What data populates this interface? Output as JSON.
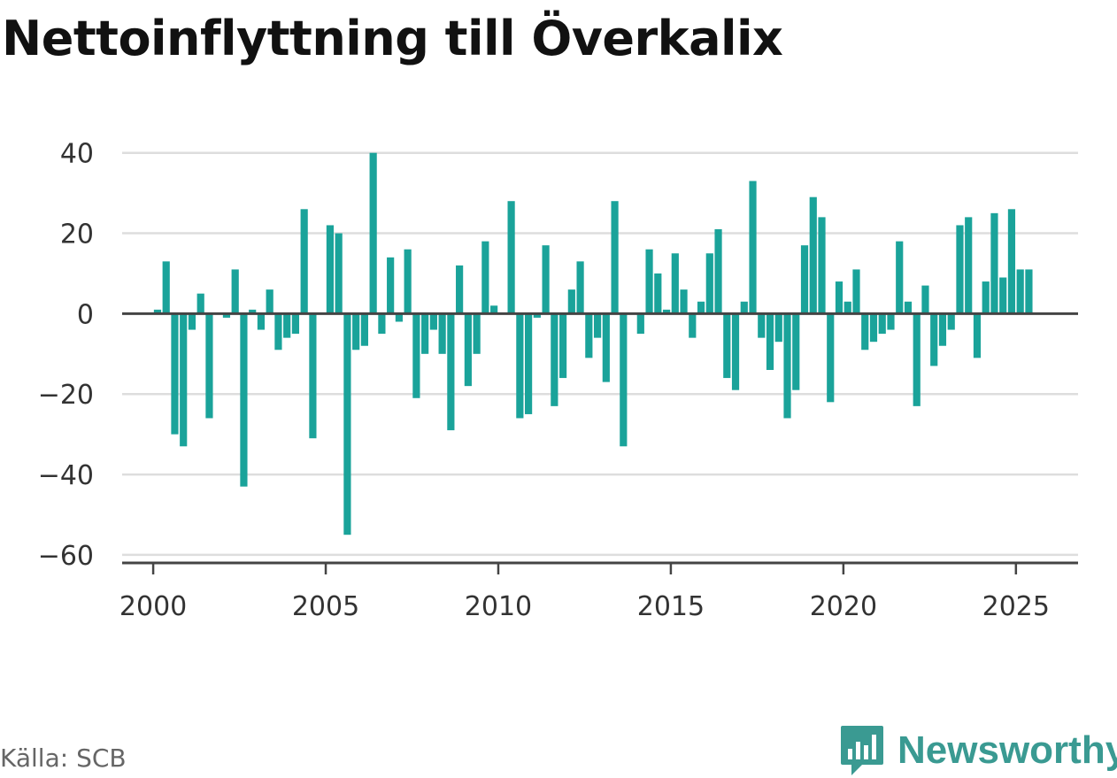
{
  "title": "Nettoinflyttning till Överkalix",
  "source": "Källa: SCB",
  "brand": {
    "name": "Newsworthy",
    "icon": "bar-chart-bubble-icon"
  },
  "colors": {
    "bar": "#1aa39a",
    "zero_line": "#444444",
    "grid": "#dddddd",
    "brand": "#3a9a92"
  },
  "chart_data": {
    "type": "bar",
    "title": "Nettoinflyttning till Överkalix",
    "xlabel": "",
    "ylabel": "",
    "frequency": "quarterly",
    "xlim": [
      1999.1,
      2026.8
    ],
    "ylim": [
      -62,
      45
    ],
    "grid": true,
    "x_ticks": [
      2000,
      2005,
      2010,
      2015,
      2020,
      2025
    ],
    "y_ticks": [
      40,
      20,
      0,
      -20,
      -40,
      -60
    ],
    "y_tick_labels": [
      "40",
      "20",
      "0",
      "−20",
      "−40",
      "−60"
    ],
    "x": [
      "2000 Q1",
      "2000 Q2",
      "2000 Q3",
      "2000 Q4",
      "2001 Q1",
      "2001 Q2",
      "2001 Q3",
      "2001 Q4",
      "2002 Q1",
      "2002 Q2",
      "2002 Q3",
      "2002 Q4",
      "2003 Q1",
      "2003 Q2",
      "2003 Q3",
      "2003 Q4",
      "2004 Q1",
      "2004 Q2",
      "2004 Q3",
      "2004 Q4",
      "2005 Q1",
      "2005 Q2",
      "2005 Q3",
      "2005 Q4",
      "2006 Q1",
      "2006 Q2",
      "2006 Q3",
      "2006 Q4",
      "2007 Q1",
      "2007 Q2",
      "2007 Q3",
      "2007 Q4",
      "2008 Q1",
      "2008 Q2",
      "2008 Q3",
      "2008 Q4",
      "2009 Q1",
      "2009 Q2",
      "2009 Q3",
      "2009 Q4",
      "2010 Q1",
      "2010 Q2",
      "2010 Q3",
      "2010 Q4",
      "2011 Q1",
      "2011 Q2",
      "2011 Q3",
      "2011 Q4",
      "2012 Q1",
      "2012 Q2",
      "2012 Q3",
      "2012 Q4",
      "2013 Q1",
      "2013 Q2",
      "2013 Q3",
      "2013 Q4",
      "2014 Q1",
      "2014 Q2",
      "2014 Q3",
      "2014 Q4",
      "2015 Q1",
      "2015 Q2",
      "2015 Q3",
      "2015 Q4",
      "2016 Q1",
      "2016 Q2",
      "2016 Q3",
      "2016 Q4",
      "2017 Q1",
      "2017 Q2",
      "2017 Q3",
      "2017 Q4",
      "2018 Q1",
      "2018 Q2",
      "2018 Q3",
      "2018 Q4",
      "2019 Q1",
      "2019 Q2",
      "2019 Q3",
      "2019 Q4",
      "2020 Q1",
      "2020 Q2",
      "2020 Q3",
      "2020 Q4",
      "2021 Q1",
      "2021 Q2",
      "2021 Q3",
      "2021 Q4",
      "2022 Q1",
      "2022 Q2",
      "2022 Q3",
      "2022 Q4",
      "2023 Q1",
      "2023 Q2",
      "2023 Q3",
      "2023 Q4",
      "2024 Q1",
      "2024 Q2",
      "2024 Q3",
      "2024 Q4",
      "2025 Q1",
      "2025 Q2"
    ],
    "values": [
      1,
      13,
      -30,
      -33,
      -4,
      5,
      -26,
      0,
      -1,
      11,
      -43,
      1,
      -4,
      6,
      -9,
      -6,
      -5,
      26,
      -31,
      0,
      22,
      20,
      -55,
      -9,
      -8,
      40,
      -5,
      14,
      -2,
      16,
      -21,
      -10,
      -4,
      -10,
      -29,
      12,
      -18,
      -10,
      18,
      2,
      0,
      28,
      -26,
      -25,
      -1,
      17,
      -23,
      -16,
      6,
      13,
      -11,
      -6,
      -17,
      28,
      -33,
      0,
      -5,
      16,
      10,
      1,
      15,
      6,
      -6,
      3,
      15,
      21,
      -16,
      -19,
      3,
      33,
      -6,
      -14,
      -7,
      -26,
      -19,
      17,
      29,
      24,
      -22,
      8,
      3,
      11,
      -9,
      -7,
      -5,
      -4,
      18,
      3,
      -23,
      7,
      -13,
      -8,
      -4,
      22,
      24,
      -11,
      8,
      25,
      9,
      26,
      11,
      11
    ]
  }
}
